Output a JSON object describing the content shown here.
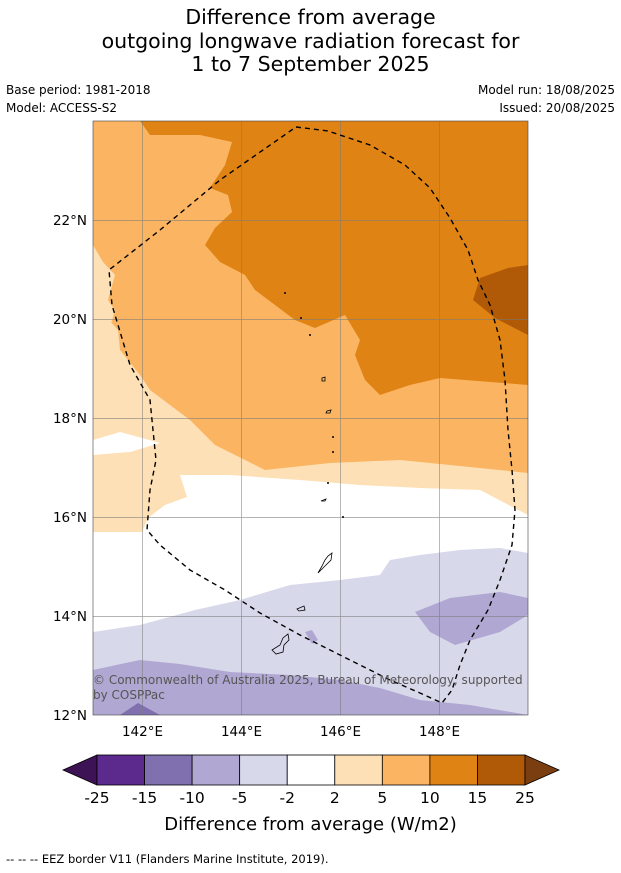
{
  "title": {
    "line1": "Difference from average",
    "line2": "outgoing longwave radiation forecast for",
    "line3": "1 to 7 September 2025"
  },
  "meta": {
    "base_period": "Base period: 1981-2018",
    "model": "Model: ACCESS-S2",
    "model_run": "Model run: 18/08/2025",
    "issued": "Issued: 20/08/2025"
  },
  "map": {
    "lon_ticks": [
      "142°E",
      "144°E",
      "146°E",
      "148°E"
    ],
    "lat_ticks": [
      "22°N",
      "20°N",
      "18°N",
      "16°N",
      "14°N",
      "12°N"
    ],
    "lon_range": [
      141,
      149.8
    ],
    "lat_range": [
      12,
      24
    ],
    "copyright_line1": "© Commonwealth of Australia 2025, Bureau of Meteorology, supported",
    "copyright_line2": "by COSPPac"
  },
  "colorbar": {
    "ticks": [
      "-25",
      "-15",
      "-10",
      "-5",
      "-2",
      "2",
      "5",
      "10",
      "15",
      "25"
    ],
    "colors": [
      "#3d1356",
      "#5b2a8c",
      "#8070b0",
      "#b0a8d2",
      "#d8d8eb",
      "#ffffff",
      "#fde0b6",
      "#fbb562",
      "#e08315",
      "#b05a07",
      "#7a3e10"
    ],
    "label": "Difference from average (W/m2)"
  },
  "footer": {
    "legend_symbol": "--  --  --",
    "legend_text": "EEZ border V11 (Flanders Marine Institute, 2019)."
  }
}
